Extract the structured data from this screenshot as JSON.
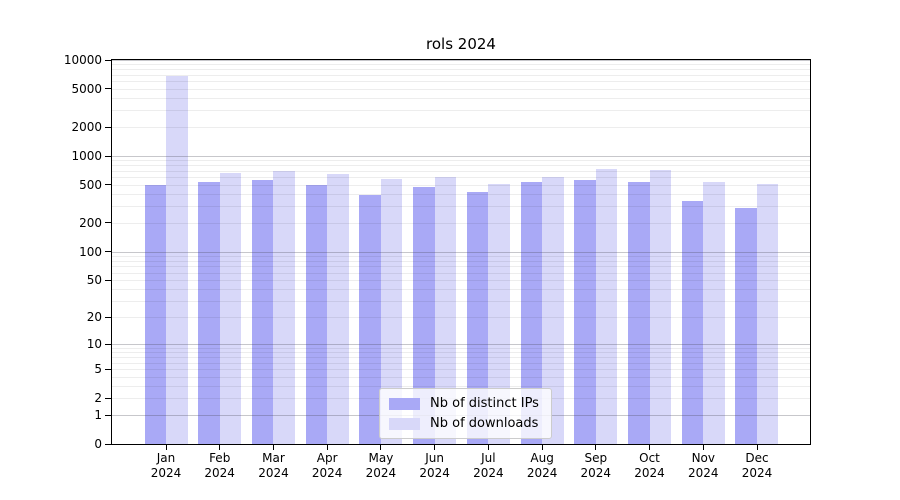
{
  "title": "rols 2024",
  "chart_data": {
    "type": "bar",
    "title": "rols 2024",
    "categories": [
      "Jan",
      "Feb",
      "Mar",
      "Apr",
      "May",
      "Jun",
      "Jul",
      "Aug",
      "Sep",
      "Oct",
      "Nov",
      "Dec"
    ],
    "category_year": "2024",
    "series": [
      {
        "name": "Nb of distinct IPs",
        "color": "#a9a9f6",
        "values": [
          500,
          530,
          560,
          500,
          390,
          480,
          420,
          530,
          560,
          530,
          340,
          290
        ]
      },
      {
        "name": "Nb of downloads",
        "color": "#d8d8f9",
        "values": [
          6900,
          670,
          700,
          650,
          570,
          610,
          510,
          610,
          740,
          720,
          530,
          510
        ]
      }
    ],
    "yscale": "log1p",
    "ylim": [
      0,
      10000
    ],
    "yticks": [
      0,
      1,
      2,
      5,
      10,
      20,
      50,
      100,
      200,
      500,
      1000,
      2000,
      5000,
      10000
    ],
    "grid": true,
    "legend_position": "lower center",
    "axis_color": "#000000",
    "background": "#ffffff"
  }
}
